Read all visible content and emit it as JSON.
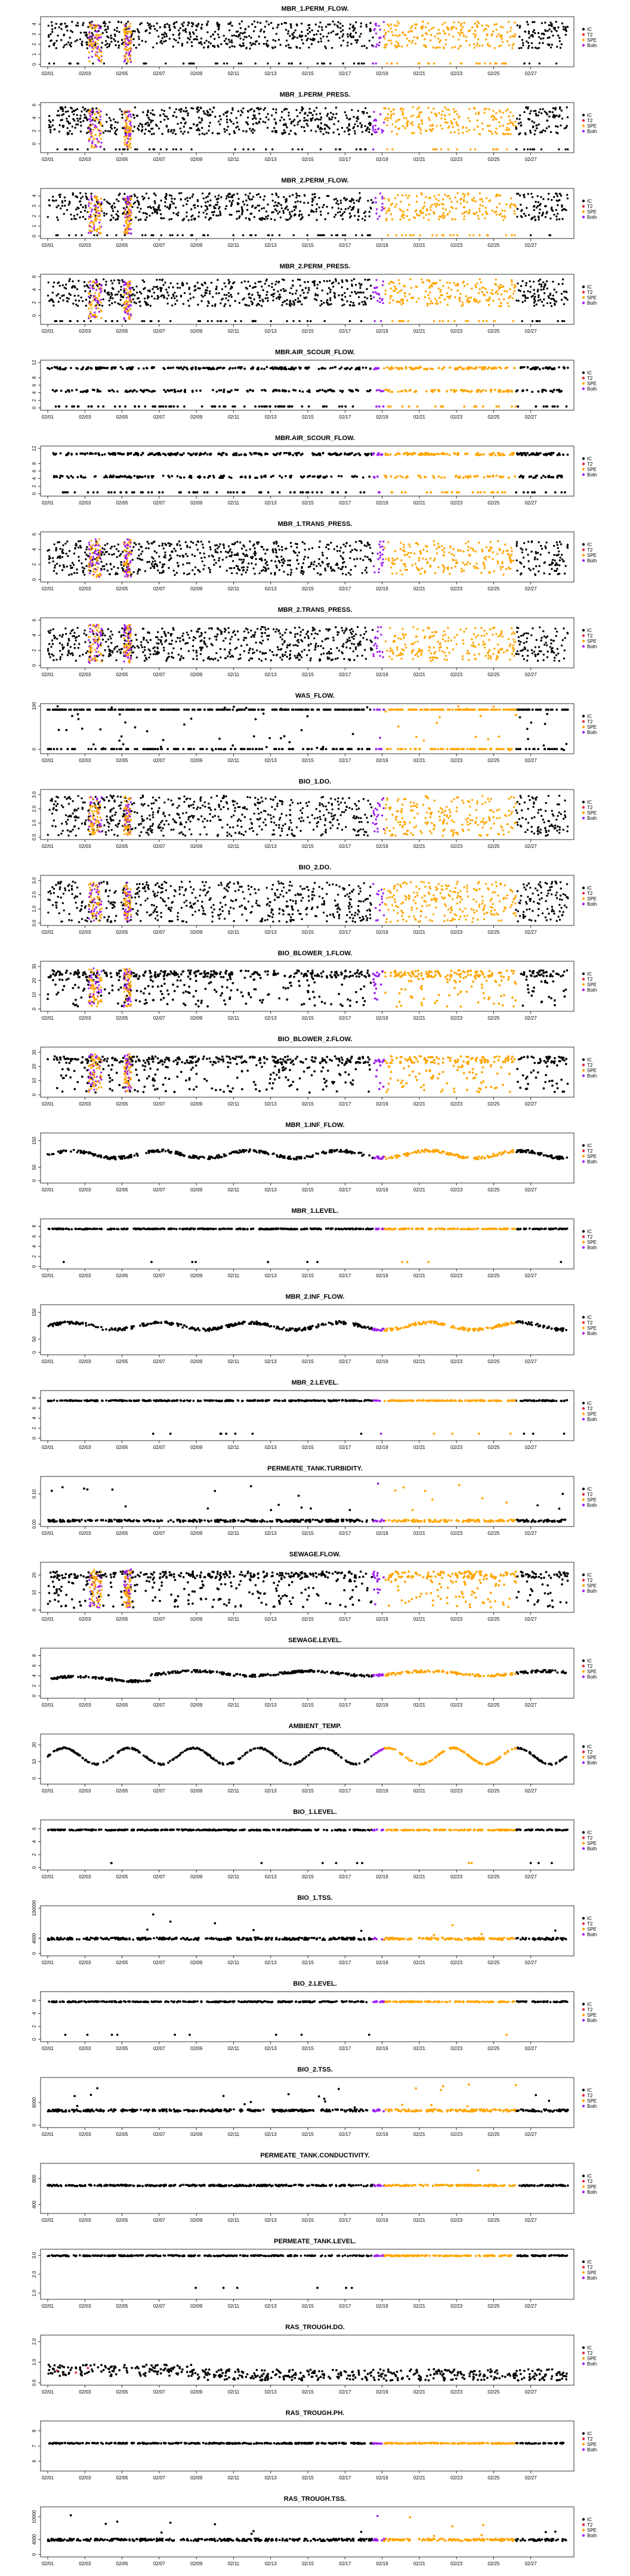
{
  "colors": {
    "IC": "#000000",
    "T2": "#e8233a",
    "SPE": "#ffa500",
    "Both": "#a020f0",
    "axis": "#000000"
  },
  "legend_labels": [
    "IC",
    "T2",
    "SPE",
    "Both"
  ],
  "chart_data": [
    {
      "type": "scatter",
      "title": "MBR_1.PERM_FLOW.",
      "yticks": [
        "0",
        "1",
        "2",
        "3",
        "4"
      ],
      "ylim": [
        0,
        4.5
      ],
      "profile": "band_hi",
      "spe": "dense"
    },
    {
      "type": "scatter",
      "title": "MBR_1.PERM_PRESS.",
      "yticks": [
        "0",
        "2",
        "4",
        "6"
      ],
      "ylim": [
        -1,
        6
      ],
      "profile": "band_hi",
      "spe": "dense"
    },
    {
      "type": "scatter",
      "title": "MBR_2.PERM_FLOW.",
      "yticks": [
        "0",
        "1",
        "2",
        "3",
        "4"
      ],
      "ylim": [
        0,
        4.5
      ],
      "profile": "band_hi",
      "spe": "dense"
    },
    {
      "type": "scatter",
      "title": "MBR_2.PERM_PRESS.",
      "yticks": [
        "0",
        "2",
        "4",
        "6"
      ],
      "ylim": [
        -1,
        6
      ],
      "profile": "band_hi",
      "spe": "dense"
    },
    {
      "type": "scatter",
      "title": "MBR.AIR_SCOUR_FLOW.",
      "yticks": [
        "0",
        "2",
        "4",
        "6",
        "8",
        "12"
      ],
      "ylim": [
        0,
        12
      ],
      "profile": "two_lines",
      "spe": "sparse"
    },
    {
      "type": "scatter",
      "title": "MBR.AIR_SCOUR_FLOW.",
      "yticks": [
        "0",
        "2",
        "4",
        "6",
        "8",
        "12"
      ],
      "ylim": [
        0,
        12
      ],
      "profile": "two_lines",
      "spe": "sparse"
    },
    {
      "type": "scatter",
      "title": "MBR_1.TRANS_PRESS.",
      "yticks": [
        "0",
        "2",
        "4",
        "6"
      ],
      "ylim": [
        0,
        6
      ],
      "profile": "band_mid",
      "spe": "dense"
    },
    {
      "type": "scatter",
      "title": "MBR_2.TRANS_PRESS.",
      "yticks": [
        "0",
        "2",
        "4",
        "6"
      ],
      "ylim": [
        0,
        6
      ],
      "profile": "band_mid",
      "spe": "dense"
    },
    {
      "type": "scatter",
      "title": "WAS_FLOW.",
      "yticks": [
        "0",
        "100"
      ],
      "ylim": [
        -5,
        100
      ],
      "profile": "was",
      "spe": "sparse"
    },
    {
      "type": "scatter",
      "title": "BIO_1.DO.",
      "yticks": [
        "0.0",
        "1.0",
        "2.0",
        "3.0"
      ],
      "ylim": [
        0,
        3.2
      ],
      "profile": "band_full",
      "spe": "dense"
    },
    {
      "type": "scatter",
      "title": "BIO_2.DO.",
      "yticks": [
        "0.0",
        "1.0",
        "2.0",
        "3.0"
      ],
      "ylim": [
        0,
        3.2
      ],
      "profile": "band_full",
      "spe": "dense"
    },
    {
      "type": "scatter",
      "title": "BIO_BLOWER_1.FLOW.",
      "yticks": [
        "0",
        "10",
        "20",
        "30"
      ],
      "ylim": [
        0,
        32
      ],
      "profile": "blower",
      "spe": "medium"
    },
    {
      "type": "scatter",
      "title": "BIO_BLOWER_2.FLOW.",
      "yticks": [
        "0",
        "10",
        "20",
        "30"
      ],
      "ylim": [
        0,
        32
      ],
      "profile": "blower",
      "spe": "medium"
    },
    {
      "type": "scatter",
      "title": "MBR_1.INF_FLOW.",
      "yticks": [
        "0",
        "50",
        "150"
      ],
      "ylim": [
        0,
        170
      ],
      "profile": "line_mid",
      "spe": "line"
    },
    {
      "type": "scatter",
      "title": "MBR_1.LEVEL.",
      "yticks": [
        "0",
        "2",
        "4",
        "6",
        "8"
      ],
      "ylim": [
        0,
        9
      ],
      "profile": "level",
      "spe": "line"
    },
    {
      "type": "scatter",
      "title": "MBR_2.INF_FLOW.",
      "yticks": [
        "0",
        "50",
        "150"
      ],
      "ylim": [
        0,
        170
      ],
      "profile": "line_mid",
      "spe": "line"
    },
    {
      "type": "scatter",
      "title": "MBR_2.LEVEL.",
      "yticks": [
        "0",
        "2",
        "4",
        "6",
        "8"
      ],
      "ylim": [
        0,
        9
      ],
      "profile": "level",
      "spe": "line"
    },
    {
      "type": "scatter",
      "title": "PERMEATE_TANK.TURBIDITY.",
      "yticks": [
        "0.00",
        "0.10"
      ],
      "ylim": [
        0,
        0.15
      ],
      "profile": "turbidity",
      "spe": "line"
    },
    {
      "type": "scatter",
      "title": "SEWAGE.FLOW.",
      "yticks": [
        "0",
        "10",
        "20"
      ],
      "ylim": [
        0,
        26
      ],
      "profile": "blower",
      "spe": "medium"
    },
    {
      "type": "scatter",
      "title": "SEWAGE.LEVEL.",
      "yticks": [
        "0",
        "2",
        "4",
        "6",
        "8"
      ],
      "ylim": [
        0,
        9
      ],
      "profile": "sewage_level",
      "spe": "line"
    },
    {
      "type": "scatter",
      "title": "AMBIENT_TEMP.",
      "yticks": [
        "0",
        "10",
        "20"
      ],
      "ylim": [
        -2,
        25
      ],
      "profile": "temp",
      "spe": "line"
    },
    {
      "type": "scatter",
      "title": "BIO_1.LEVEL.",
      "yticks": [
        "0",
        "2",
        "4",
        "6"
      ],
      "ylim": [
        0,
        7
      ],
      "profile": "level",
      "spe": "line"
    },
    {
      "type": "scatter",
      "title": "BIO_1.TSS.",
      "yticks": [
        "0",
        "4000",
        "100000"
      ],
      "ylim": [
        0,
        12000
      ],
      "profile": "tss",
      "spe": "line"
    },
    {
      "type": "scatter",
      "title": "BIO_2.LEVEL.",
      "yticks": [
        "0",
        "2",
        "4",
        "6"
      ],
      "ylim": [
        0,
        7
      ],
      "profile": "level",
      "spe": "line"
    },
    {
      "type": "scatter",
      "title": "BIO_2.TSS.",
      "yticks": [
        "0",
        "6000"
      ],
      "ylim": [
        0,
        12000
      ],
      "profile": "tss",
      "spe": "line"
    },
    {
      "type": "scatter",
      "title": "PERMEATE_TANK.CONDUCTIVITY.",
      "yticks": [
        "400",
        "800"
      ],
      "ylim": [
        300,
        1000
      ],
      "profile": "conductivity",
      "spe": "line"
    },
    {
      "type": "scatter",
      "title": "PERMEATE_TANK.LEVEL.",
      "yticks": [
        "1.0",
        "2.0",
        "3.0"
      ],
      "ylim": [
        0.8,
        3.2
      ],
      "profile": "perm_level",
      "spe": "line"
    },
    {
      "type": "scatter",
      "title": "RAS_TROUGH.DO.",
      "yticks": [
        "0.0",
        "1.0",
        "2.0"
      ],
      "ylim": [
        0,
        2.2
      ],
      "profile": "ras_do",
      "spe": "none"
    },
    {
      "type": "scatter",
      "title": "RAS_TROUGH.PH.",
      "yticks": [
        "6",
        "7",
        "8"
      ],
      "ylim": [
        5.5,
        8.5
      ],
      "profile": "ph",
      "spe": "line"
    },
    {
      "type": "scatter",
      "title": "RAS_TROUGH.TSS.",
      "yticks": [
        "0",
        "4000",
        "10000"
      ],
      "ylim": [
        0,
        12000
      ],
      "profile": "tss",
      "spe": "line"
    }
  ],
  "x_ticks": [
    "02/01",
    "02/03",
    "02/05",
    "02/07",
    "02/09",
    "02/11",
    "02/13",
    "02/15",
    "02/17",
    "02/19",
    "02/21",
    "02/23",
    "02/25",
    "02/27"
  ]
}
